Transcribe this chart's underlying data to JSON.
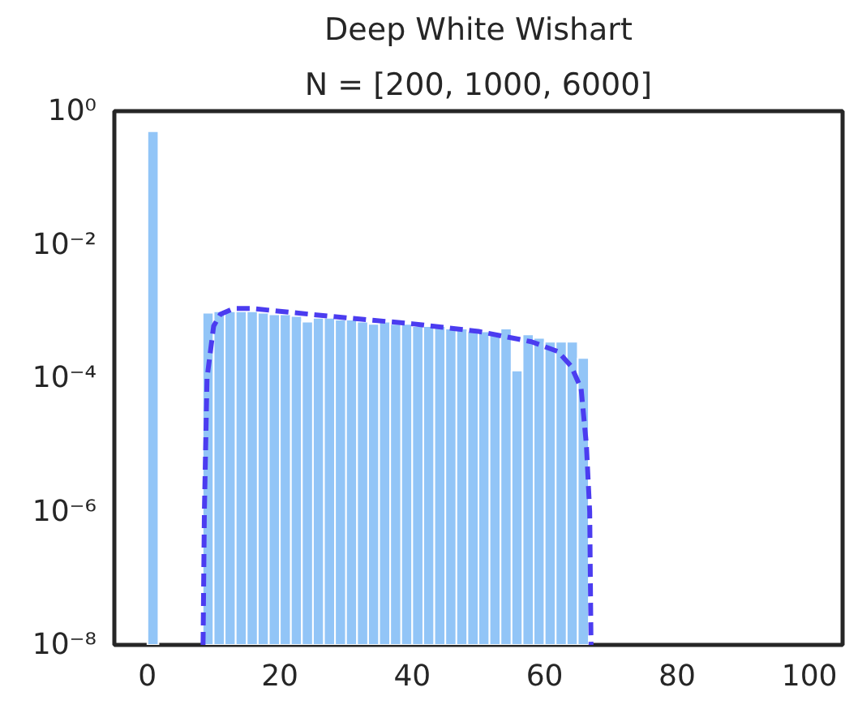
{
  "chart_data": {
    "type": "histogram",
    "title": "Deep White Wishart",
    "subtitle": "N = [200, 1000, 6000]",
    "bins": [
      0,
      1.667,
      3.333,
      5,
      6.667,
      8.333,
      10,
      11.667,
      13.333,
      15,
      16.667,
      18.333,
      20,
      21.667,
      23.333,
      25,
      26.667,
      28.333,
      30,
      31.667,
      33.333,
      35,
      36.667,
      38.333,
      40,
      41.667,
      43.333,
      45,
      46.667,
      48.333,
      50,
      51.667,
      53.333,
      55,
      56.667,
      58.333,
      60,
      61.667,
      63.333,
      65,
      66.667
    ],
    "series": [
      {
        "color": "#92c5f7",
        "values": [
          0.5,
          null,
          null,
          null,
          null,
          0.00095,
          0.001,
          0.001,
          0.001,
          0.001,
          0.00095,
          0.0009,
          0.0009,
          0.00085,
          0.0007,
          0.0008,
          0.0008,
          0.00075,
          0.00075,
          0.0007,
          0.00065,
          0.0007,
          0.00065,
          0.00065,
          0.0006,
          0.0006,
          0.0006,
          0.00055,
          0.00055,
          0.0005,
          0.0005,
          0.00045,
          0.00055,
          0.00013,
          0.00045,
          0.0004,
          0.00035,
          0.00035,
          0.00035,
          0.0002
        ]
      },
      {
        "type": "line",
        "color": "#4b3cf0",
        "line_style": "dashed",
        "x": [
          8.4,
          8.6,
          9,
          10,
          11,
          13,
          16,
          20,
          30,
          40,
          50,
          58,
          62,
          64,
          65.5,
          66.3,
          66.8,
          67
        ],
        "values": [
          1e-08,
          1e-06,
          0.0001,
          0.0006,
          0.0009,
          0.0011,
          0.0011,
          0.001,
          0.0008,
          0.00065,
          0.0005,
          0.00035,
          0.00025,
          0.00015,
          7e-05,
          1e-05,
          1e-06,
          1e-08
        ]
      }
    ],
    "log": "y",
    "xlim": [
      -5,
      105
    ],
    "ylim": [
      1e-08,
      1
    ],
    "xticks": [
      0,
      20,
      40,
      60,
      80,
      100
    ],
    "yticks": [
      {
        "value": 1e-08,
        "label": "10⁻⁸"
      },
      {
        "value": 1e-06,
        "label": "10⁻⁶"
      },
      {
        "value": 0.0001,
        "label": "10⁻⁴"
      },
      {
        "value": 0.01,
        "label": "10⁻²"
      },
      {
        "value": 1,
        "label": "10⁰"
      }
    ],
    "grid": false
  }
}
